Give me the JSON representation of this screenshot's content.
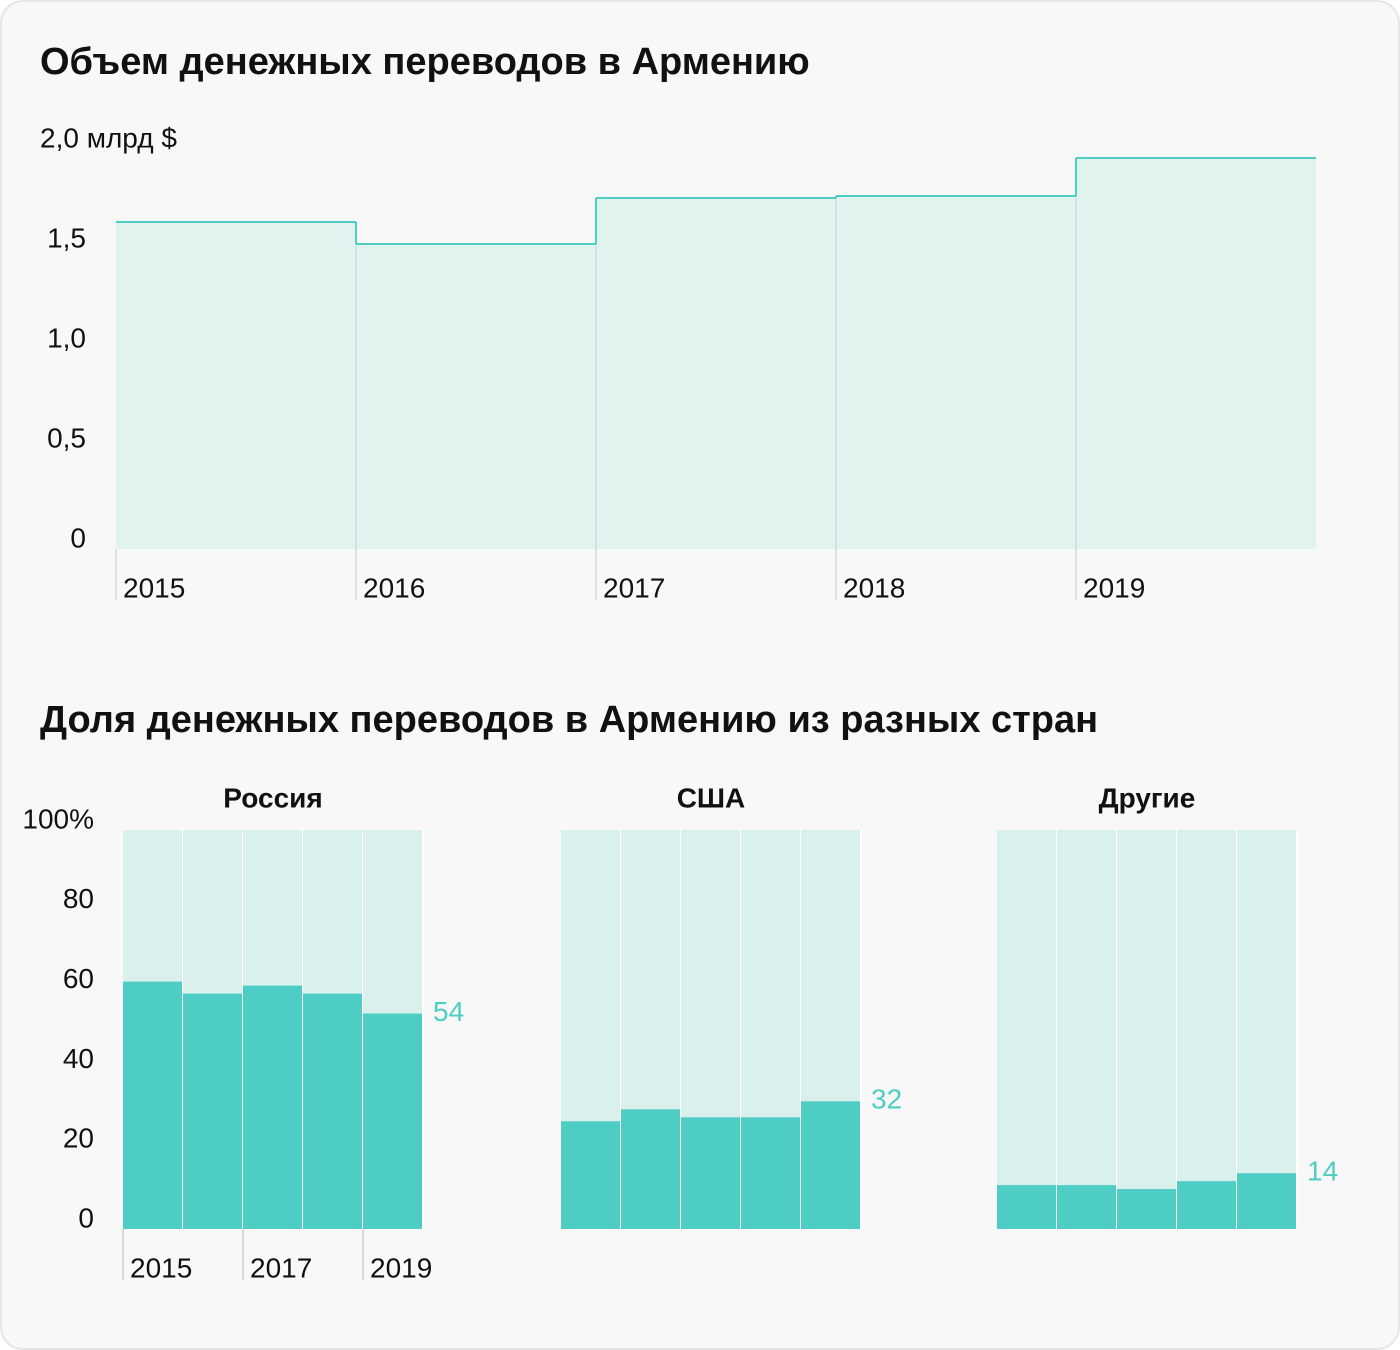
{
  "chart_data": [
    {
      "type": "step-area",
      "title": "Объем денежных переводов в Армению",
      "categories": [
        "2015",
        "2016",
        "2017",
        "2018",
        "2019"
      ],
      "values": [
        1.59,
        1.48,
        1.71,
        1.72,
        1.91
      ],
      "color": "#4ecdc4",
      "fill": "#e0f3ef",
      "ylim": [
        0,
        2
      ],
      "yticks": [
        0,
        {
          "value": 0.5,
          "label": "0,5"
        },
        {
          "value": 1,
          "label": "1,0"
        },
        {
          "value": 1.5,
          "label": "1,5"
        },
        {
          "value": 2,
          "label": "2,0 млрд $"
        }
      ]
    },
    {
      "type": "bar",
      "title": "Доля денежных переводов в Армению из разных стран",
      "categories": [
        "2015",
        null,
        "2017",
        null,
        "2019"
      ],
      "ylim": [
        0,
        100
      ],
      "yticks": [
        0,
        20,
        40,
        60,
        80,
        {
          "value": 100,
          "label": "100%"
        }
      ],
      "color": "#4ecdc4",
      "background": "#d9f0ed",
      "panels": [
        {
          "title": "Россия",
          "values": [
            62,
            59,
            61,
            59,
            54
          ]
        },
        {
          "title": "США",
          "values": [
            27,
            30,
            28,
            28,
            32
          ]
        },
        {
          "title": "Другие",
          "values": [
            11,
            11,
            10,
            12,
            14
          ]
        }
      ]
    }
  ]
}
